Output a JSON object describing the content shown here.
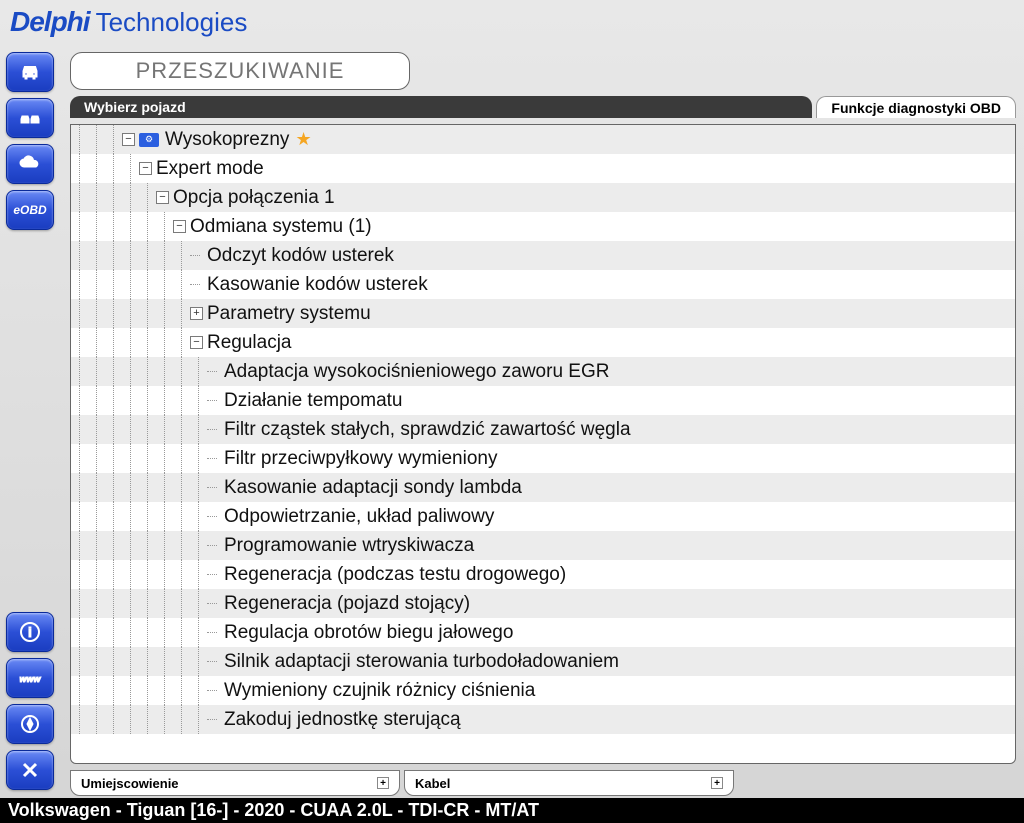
{
  "logo": {
    "brand": "Delphi",
    "sub": "Technologies"
  },
  "search": {
    "placeholder": "PRZESZUKIWANIE"
  },
  "tabs": {
    "active": "Wybierz pojazd",
    "inactive": "Funkcje diagnostyki OBD"
  },
  "sidebar": {
    "eobd": "eOBD"
  },
  "tree": {
    "rows": [
      {
        "depth": 3,
        "exp": "-",
        "icon": true,
        "label": "Wysokoprezny",
        "star": true
      },
      {
        "depth": 4,
        "exp": "-",
        "label": "Expert mode"
      },
      {
        "depth": 5,
        "exp": "-",
        "label": "Opcja połączenia 1"
      },
      {
        "depth": 6,
        "exp": "-",
        "label": "Odmiana systemu (1)"
      },
      {
        "depth": 7,
        "leaf": true,
        "label": "Odczyt kodów usterek"
      },
      {
        "depth": 7,
        "leaf": true,
        "label": "Kasowanie kodów usterek"
      },
      {
        "depth": 7,
        "exp": "+",
        "label": "Parametry systemu"
      },
      {
        "depth": 7,
        "exp": "-",
        "label": "Regulacja"
      },
      {
        "depth": 8,
        "leaf": true,
        "label": "Adaptacja wysokociśnieniowego zaworu EGR"
      },
      {
        "depth": 8,
        "leaf": true,
        "label": "Działanie tempomatu"
      },
      {
        "depth": 8,
        "leaf": true,
        "label": "Filtr cząstek stałych, sprawdzić zawartość węgla"
      },
      {
        "depth": 8,
        "leaf": true,
        "label": "Filtr przeciwpyłkowy wymieniony"
      },
      {
        "depth": 8,
        "leaf": true,
        "label": "Kasowanie adaptacji sondy lambda"
      },
      {
        "depth": 8,
        "leaf": true,
        "label": "Odpowietrzanie, układ paliwowy"
      },
      {
        "depth": 8,
        "leaf": true,
        "label": "Programowanie wtryskiwacza"
      },
      {
        "depth": 8,
        "leaf": true,
        "label": "Regeneracja (podczas testu drogowego)"
      },
      {
        "depth": 8,
        "leaf": true,
        "label": "Regeneracja (pojazd stojący)"
      },
      {
        "depth": 8,
        "leaf": true,
        "label": "Regulacja obrotów biegu jałowego"
      },
      {
        "depth": 8,
        "leaf": true,
        "label": "Silnik adaptacji sterowania turbodoładowaniem"
      },
      {
        "depth": 8,
        "leaf": true,
        "label": "Wymieniony czujnik różnicy ciśnienia"
      },
      {
        "depth": 8,
        "leaf": true,
        "label": "Zakoduj jednostkę sterującą"
      }
    ]
  },
  "bottomTabs": {
    "left": "Umiejscowienie",
    "right": "Kabel"
  },
  "status": "Volkswagen - Tiguan [16-] - 2020 - CUAA 2.0L - TDI-CR - MT/AT"
}
